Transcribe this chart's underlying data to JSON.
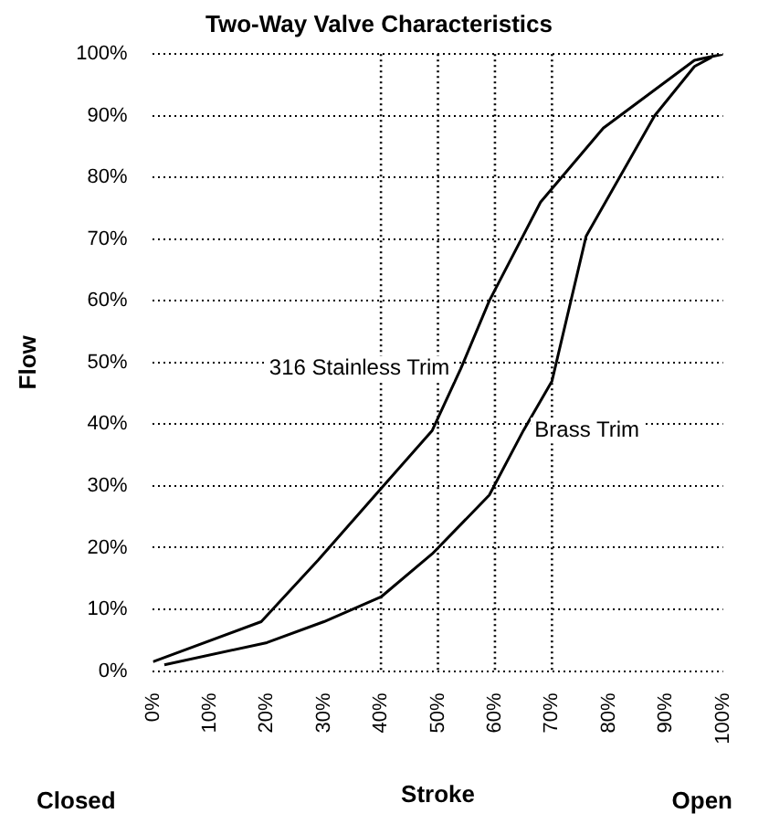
{
  "chart_data": {
    "type": "line",
    "title": "Two-Way Valve Characteristics",
    "xlabel": "Stroke",
    "ylabel": "Flow",
    "xlim": [
      0,
      100
    ],
    "ylim": [
      0,
      100
    ],
    "xticks": [
      {
        "value": 0,
        "label": "0%"
      },
      {
        "value": 10,
        "label": "10%"
      },
      {
        "value": 20,
        "label": "20%"
      },
      {
        "value": 30,
        "label": "30%"
      },
      {
        "value": 40,
        "label": "40%"
      },
      {
        "value": 50,
        "label": "50%"
      },
      {
        "value": 60,
        "label": "60%"
      },
      {
        "value": 70,
        "label": "70%"
      },
      {
        "value": 80,
        "label": "80%"
      },
      {
        "value": 90,
        "label": "90%"
      },
      {
        "value": 100,
        "label": "100%"
      }
    ],
    "yticks": [
      {
        "value": 0,
        "label": "0%"
      },
      {
        "value": 10,
        "label": "10%"
      },
      {
        "value": 20,
        "label": "20%"
      },
      {
        "value": 30,
        "label": "30%"
      },
      {
        "value": 40,
        "label": "40%"
      },
      {
        "value": 50,
        "label": "50%"
      },
      {
        "value": 60,
        "label": "60%"
      },
      {
        "value": 70,
        "label": "70%"
      },
      {
        "value": 80,
        "label": "80%"
      },
      {
        "value": 90,
        "label": "90%"
      },
      {
        "value": 100,
        "label": "100%"
      }
    ],
    "series": [
      {
        "name": "316 Stainless Trim",
        "color": "#000000",
        "x": [
          0,
          19,
          29,
          39,
          49,
          54,
          59,
          68,
          79,
          95,
          100
        ],
        "values": [
          1.5,
          8,
          18,
          28.5,
          39,
          49,
          60,
          76,
          88,
          99,
          100
        ]
      },
      {
        "name": "Brass Trim",
        "color": "#000000",
        "x": [
          2,
          20,
          30,
          40,
          49,
          59,
          65,
          70,
          76,
          88,
          95,
          98
        ],
        "values": [
          1,
          4.6,
          8,
          12,
          19,
          28.5,
          39,
          47,
          70.5,
          90,
          98,
          99.5
        ]
      }
    ],
    "ref_lines": [
      {
        "axis": "x",
        "value": 40,
        "color": "#000000",
        "line_style": "dotted"
      },
      {
        "axis": "x",
        "value": 50,
        "color": "#000000",
        "line_style": "dotted"
      },
      {
        "axis": "x",
        "value": 60,
        "color": "#000000",
        "line_style": "dotted"
      },
      {
        "axis": "x",
        "value": 70,
        "color": "#000000",
        "line_style": "dotted"
      }
    ],
    "annotations": [
      "Closed",
      "Open"
    ],
    "grid": "y",
    "legend": false,
    "marker": "none",
    "line_style": "solid"
  }
}
